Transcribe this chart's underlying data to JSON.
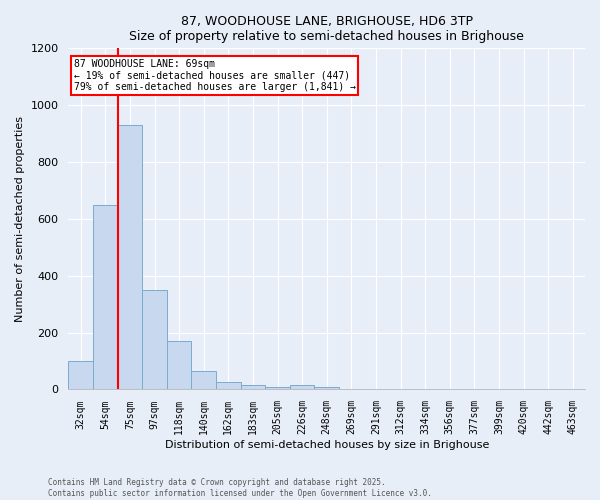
{
  "title": "87, WOODHOUSE LANE, BRIGHOUSE, HD6 3TP",
  "subtitle": "Size of property relative to semi-detached houses in Brighouse",
  "xlabel": "Distribution of semi-detached houses by size in Brighouse",
  "ylabel": "Number of semi-detached properties",
  "bar_labels": [
    "32sqm",
    "54sqm",
    "75sqm",
    "97sqm",
    "118sqm",
    "140sqm",
    "162sqm",
    "183sqm",
    "205sqm",
    "226sqm",
    "248sqm",
    "269sqm",
    "291sqm",
    "312sqm",
    "334sqm",
    "356sqm",
    "377sqm",
    "399sqm",
    "420sqm",
    "442sqm",
    "463sqm"
  ],
  "bar_values": [
    100,
    650,
    930,
    350,
    170,
    65,
    25,
    15,
    10,
    15,
    10,
    3,
    2,
    1,
    0,
    0,
    0,
    0,
    0,
    0,
    0
  ],
  "bar_color": "#c8d8ee",
  "bar_edge_color": "#7aabcf",
  "ylim": [
    0,
    1200
  ],
  "yticks": [
    0,
    200,
    400,
    600,
    800,
    1000,
    1200
  ],
  "red_line_x": 1.5,
  "annotation_title": "87 WOODHOUSE LANE: 69sqm",
  "annotation_line2": "← 19% of semi-detached houses are smaller (447)",
  "annotation_line3": "79% of semi-detached houses are larger (1,841) →",
  "bg_color": "#e8eef8",
  "plot_bg_color": "#e8eef8",
  "grid_color": "#ffffff",
  "footer_line1": "Contains HM Land Registry data © Crown copyright and database right 2025.",
  "footer_line2": "Contains public sector information licensed under the Open Government Licence v3.0."
}
